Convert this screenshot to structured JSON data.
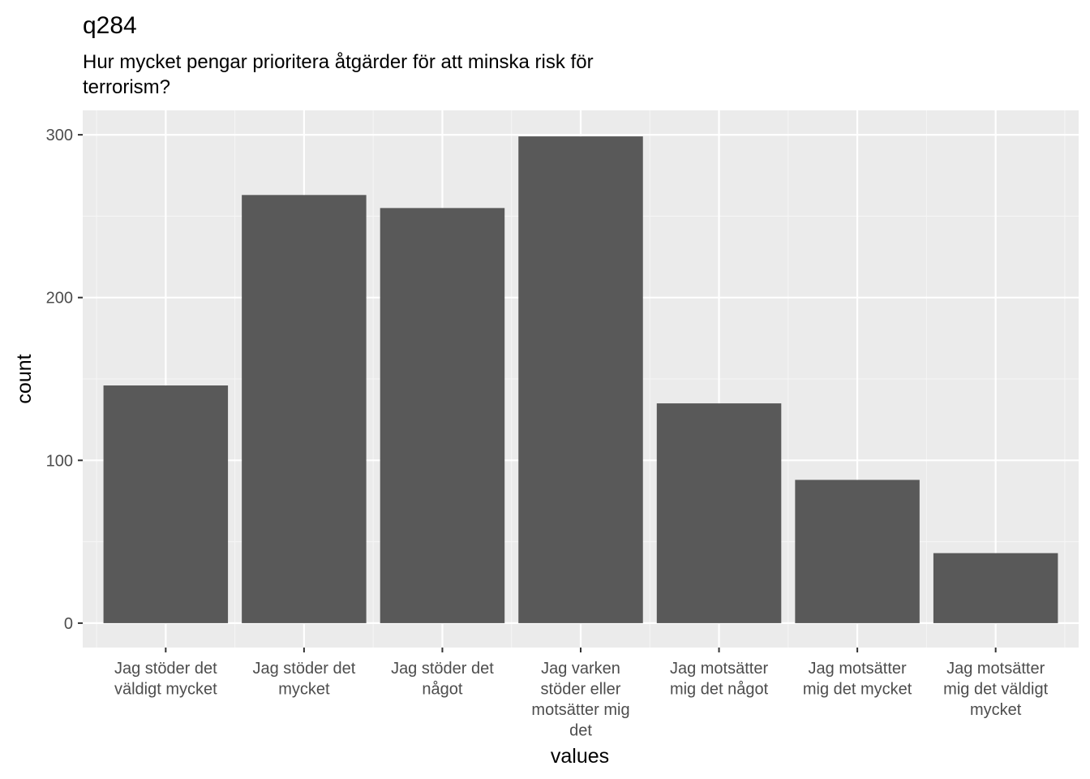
{
  "chart_data": {
    "type": "bar",
    "title": "q284",
    "subtitle_lines": [
      "Hur mycket pengar prioritera åtgärder för att minska risk för",
      "terrorism?"
    ],
    "xlabel": "values",
    "ylabel": "count",
    "ylim": [
      -15,
      315
    ],
    "yticks": [
      0,
      100,
      200,
      300
    ],
    "ytick_labels": [
      "0",
      "100",
      "200",
      "300"
    ],
    "categories": [
      [
        "Jag stöder det",
        "väldigt mycket"
      ],
      [
        "Jag stöder det",
        "mycket"
      ],
      [
        "Jag stöder det",
        "något"
      ],
      [
        "Jag varken",
        "stöder eller",
        "motsätter mig",
        "det"
      ],
      [
        "Jag motsätter",
        "mig det något"
      ],
      [
        "Jag motsätter",
        "mig det mycket"
      ],
      [
        "Jag motsätter",
        "mig det väldigt",
        "mycket"
      ]
    ],
    "values": [
      146,
      263,
      255,
      299,
      135,
      88,
      43
    ],
    "colors": {
      "bar": "#595959",
      "panel": "#ebebeb",
      "grid_major": "#ffffff",
      "grid_minor": "#f5f5f5",
      "tick_text": "#4d4d4d"
    },
    "grid": true,
    "legend": "none"
  }
}
